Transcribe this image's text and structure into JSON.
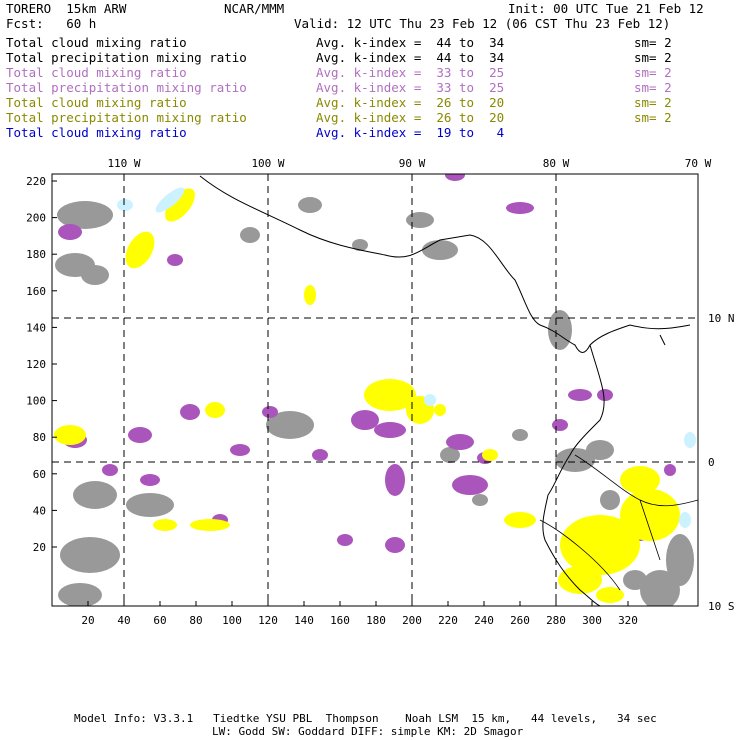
{
  "header": {
    "model": "TORERO  15km ARW",
    "org": "NCAR/MMM",
    "init": "Init: 00 UTC Tue 21 Feb 12",
    "fcst": "Fcst:   60 h",
    "valid": "Valid: 12 UTC Thu 23 Feb 12 (06 CST Thu 23 Feb 12)"
  },
  "fields": [
    {
      "name": "Total cloud mixing ratio",
      "kindex": "Avg. k-index =  44 to  34",
      "sm": "sm= 2",
      "color": "#000000"
    },
    {
      "name": "Total precipitation mixing ratio",
      "kindex": "Avg. k-index =  44 to  34",
      "sm": "sm= 2",
      "color": "#000000"
    },
    {
      "name": "Total cloud mixing ratio",
      "kindex": "Avg. k-index =  33 to  25",
      "sm": "sm= 2",
      "color": "#b070c0"
    },
    {
      "name": "Total precipitation mixing ratio",
      "kindex": "Avg. k-index =  33 to  25",
      "sm": "sm= 2",
      "color": "#b070c0"
    },
    {
      "name": "Total cloud mixing ratio",
      "kindex": "Avg. k-index =  26 to  20",
      "sm": "sm= 2",
      "color": "#8a8a00"
    },
    {
      "name": "Total precipitation mixing ratio",
      "kindex": "Avg. k-index =  26 to  20",
      "sm": "sm= 2",
      "color": "#8a8a00"
    },
    {
      "name": "Total cloud mixing ratio",
      "kindex": "Avg. k-index =  19 to   4",
      "sm": "",
      "color": "#0000cc"
    }
  ],
  "map": {
    "lon_labels": [
      "110 W",
      "100 W",
      "90 W",
      "80 W",
      "70 W"
    ],
    "lat_labels": [
      "10 N",
      "0",
      "10 S"
    ],
    "y_ticks": [
      "220",
      "200",
      "180",
      "160",
      "140",
      "120",
      "100",
      "80",
      "60",
      "40",
      "20"
    ],
    "x_ticks": [
      "20",
      "40",
      "60",
      "80",
      "100",
      "120",
      "140",
      "160",
      "180",
      "200",
      "220",
      "240",
      "260",
      "280",
      "300",
      "320"
    ],
    "colors": {
      "gray": "#999999",
      "purple": "#aa55bb",
      "yellow": "#ffff00",
      "cyan": "#ccf2ff"
    }
  },
  "footer": {
    "line1": "Model Info: V3.3.1   Tiedtke YSU PBL  Thompson    Noah LSM  15 km,   44 levels,   34 sec",
    "line2": "LW: Godd SW: Goddard DIFF: simple KM: 2D Smagor"
  }
}
